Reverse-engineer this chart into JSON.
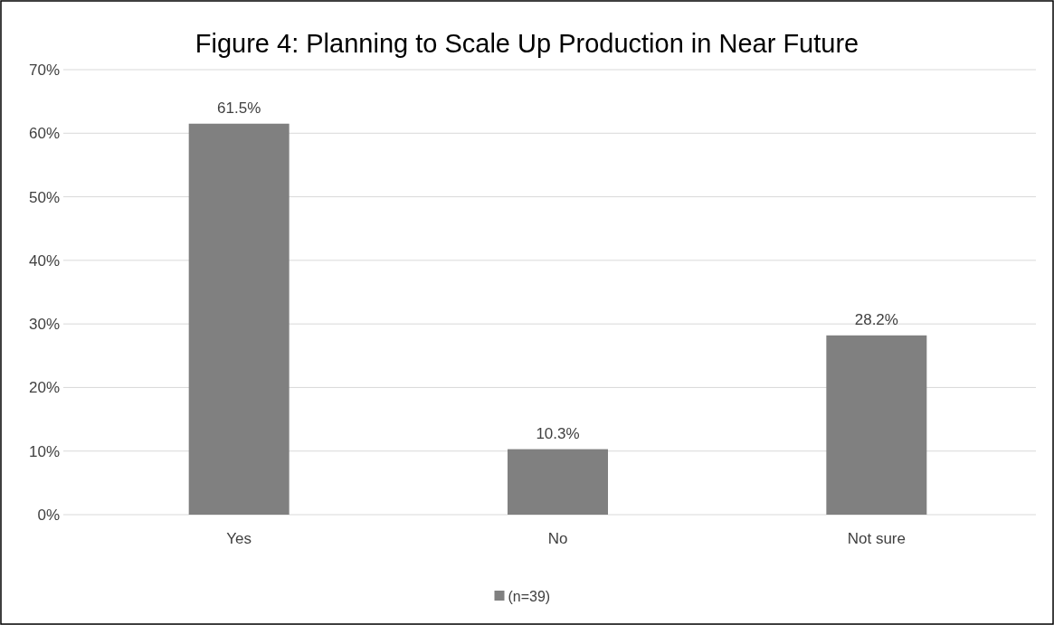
{
  "chart_data": {
    "type": "bar",
    "title": "Figure 4: Planning to Scale Up Production in Near Future",
    "categories": [
      "Yes",
      "No",
      "Not sure"
    ],
    "series": [
      {
        "name": "(n=39)",
        "color": "#808080",
        "values": [
          61.5,
          10.3,
          28.2
        ]
      }
    ],
    "ylim": [
      0,
      70
    ],
    "yticks": [
      {
        "value": 0,
        "label": "0%"
      },
      {
        "value": 10,
        "label": "10%"
      },
      {
        "value": 20,
        "label": "20%"
      },
      {
        "value": 30,
        "label": "30%"
      },
      {
        "value": 40,
        "label": "40%"
      },
      {
        "value": 50,
        "label": "50%"
      },
      {
        "value": 60,
        "label": "60%"
      },
      {
        "value": 70,
        "label": "70%"
      }
    ],
    "value_labels": [
      "61.5%",
      "10.3%",
      "28.2%"
    ],
    "grid": "y",
    "legend": "bottom"
  }
}
